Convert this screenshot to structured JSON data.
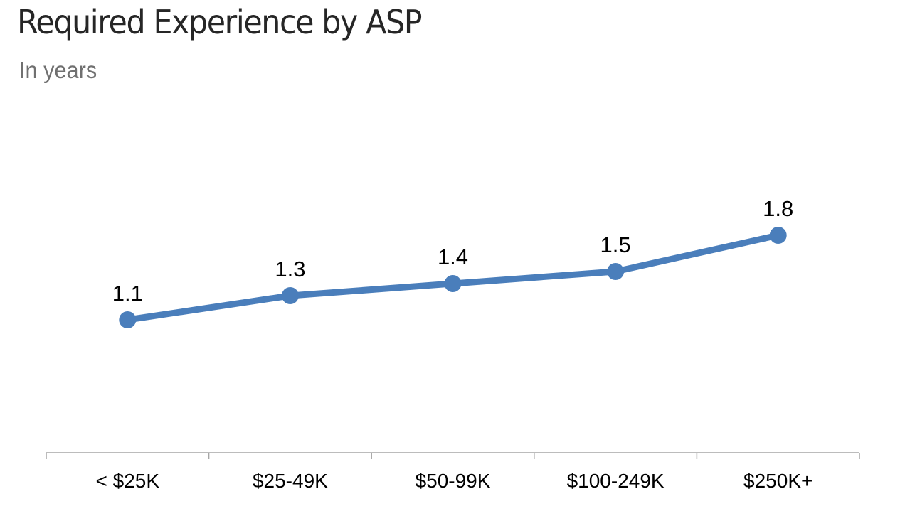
{
  "chart_data": {
    "type": "line",
    "title": "Required Experience by ASP",
    "subtitle": "In years",
    "categories": [
      "< $25K",
      "$25-49K",
      "$50-99K",
      "$100-249K",
      "$250K+"
    ],
    "series": [
      {
        "name": "Required Experience",
        "values": [
          1.1,
          1.3,
          1.4,
          1.5,
          1.8
        ]
      }
    ],
    "data_labels": [
      "1.1",
      "1.3",
      "1.4",
      "1.5",
      "1.8"
    ],
    "xlabel": "",
    "ylabel": "",
    "ylim": [
      0,
      2.3
    ],
    "grid": false,
    "legend": "none",
    "line_color": "#4A7EBB",
    "axis_color": "#A6A6A6"
  }
}
